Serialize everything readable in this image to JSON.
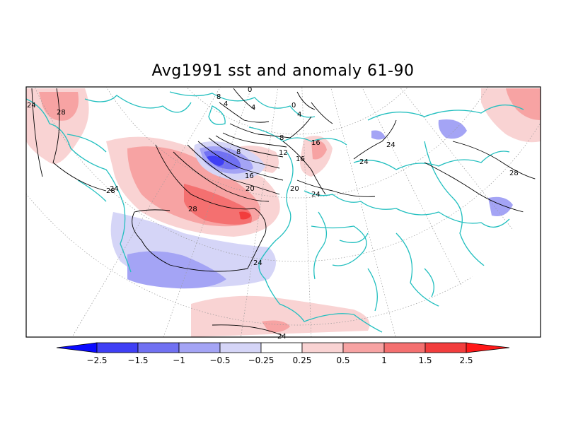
{
  "title": "Avg1991 sst and anomaly 61-90",
  "colorbar": {
    "labels": [
      "−2.5",
      "−1.5",
      "−1",
      "−0.5",
      "−0.25",
      "0.25",
      "0.5",
      "1",
      "1.5",
      "2.5"
    ],
    "colors": [
      "#0a0aff",
      "#3f3ff5",
      "#7171f2",
      "#a4a4f5",
      "#d5d5f7",
      "#ffffff",
      "#f9d3d3",
      "#f7a3a3",
      "#f47070",
      "#f23d3d",
      "#ff1818"
    ]
  },
  "contour_labels": [
    "24",
    "28",
    "28",
    "28",
    "24",
    "24",
    "8",
    "4",
    "4",
    "0",
    "0",
    "4",
    "8",
    "8",
    "12",
    "16",
    "16",
    "20",
    "20",
    "24",
    "24",
    "16",
    "24",
    "28",
    "24"
  ],
  "colors": {
    "coastline": "#22bfbf",
    "grid": "#999999",
    "contour": "#000000"
  }
}
